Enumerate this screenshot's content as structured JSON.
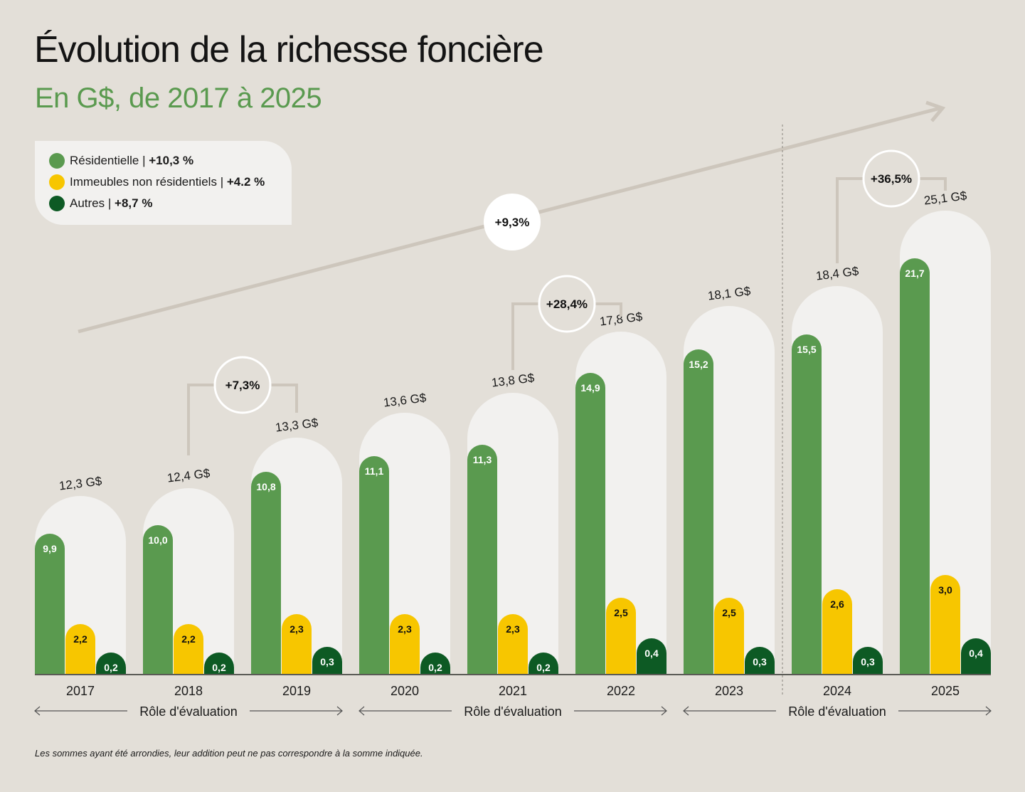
{
  "title": "Évolution de la richesse foncière",
  "subtitle": "En G$, de 2017 à 2025",
  "legend": [
    {
      "name": "Résidentielle",
      "sep": "|",
      "growth": "+10,3 %",
      "color": "#5a9a4f"
    },
    {
      "name": "Immeubles non résidentiels",
      "sep": "|",
      "growth": "+4.2 %",
      "color": "#f7c600"
    },
    {
      "name": "Autres",
      "sep": "|",
      "growth": "+8,7 %",
      "color": "#0d5a24"
    }
  ],
  "chart_data": {
    "type": "bar",
    "title": "Évolution de la richesse foncière",
    "subtitle": "En G$, de 2017 à 2025",
    "categories": [
      "2017",
      "2018",
      "2019",
      "2020",
      "2021",
      "2022",
      "2023",
      "2024",
      "2025"
    ],
    "series": [
      {
        "name": "Résidentielle",
        "color": "#5a9a4f",
        "values": [
          9.9,
          10.0,
          10.8,
          11.1,
          11.3,
          14.9,
          15.2,
          15.5,
          21.7
        ],
        "labels": [
          "9,9",
          "10,0",
          "10,8",
          "11,1",
          "11,3",
          "14,9",
          "15,2",
          "15,5",
          "21,7"
        ]
      },
      {
        "name": "Immeubles non résidentiels",
        "color": "#f7c600",
        "values": [
          2.2,
          2.2,
          2.3,
          2.3,
          2.3,
          2.5,
          2.5,
          2.6,
          3.0
        ],
        "labels": [
          "2,2",
          "2,2",
          "2,3",
          "2,3",
          "2,3",
          "2,5",
          "2,5",
          "2,6",
          "3,0"
        ]
      },
      {
        "name": "Autres",
        "color": "#0d5a24",
        "values": [
          0.2,
          0.2,
          0.3,
          0.2,
          0.2,
          0.4,
          0.3,
          0.3,
          0.4
        ],
        "labels": [
          "0,2",
          "0,2",
          "0,3",
          "0,2",
          "0,2",
          "0,4",
          "0,3",
          "0,3",
          "0,4"
        ]
      }
    ],
    "totals": [
      12.3,
      12.4,
      13.3,
      13.6,
      13.8,
      17.8,
      18.1,
      18.4,
      25.1
    ],
    "total_labels": [
      "12,3 G$",
      "12,4 G$",
      "13,3 G$",
      "13,6 G$",
      "13,8 G$",
      "17,8 G$",
      "18,1 G$",
      "18,4 G$",
      "25,1 G$"
    ],
    "overall_growth": "+9,3%",
    "role_growth": [
      {
        "from": "2018",
        "to": "2019",
        "label": "+7,3%"
      },
      {
        "from": "2021",
        "to": "2022",
        "label": "+28,4%"
      },
      {
        "from": "2024",
        "to": "2025",
        "label": "+36,5%"
      }
    ],
    "roles": [
      {
        "label": "Rôle d'évaluation",
        "years": [
          "2017",
          "2019"
        ]
      },
      {
        "label": "Rôle d'évaluation",
        "years": [
          "2020",
          "2022"
        ]
      },
      {
        "label": "Rôle d'évaluation",
        "years": [
          "2023",
          "2025"
        ]
      }
    ],
    "xlabel": "",
    "ylabel": "G$"
  },
  "note": "Les sommes ayant été arrondies, leur addition peut ne pas correspondre à la somme indiquée.",
  "colors": {
    "background": "#e3dfd8",
    "arch": "#f2f1ef",
    "title": "#141414",
    "accent": "#5a9a4f"
  }
}
